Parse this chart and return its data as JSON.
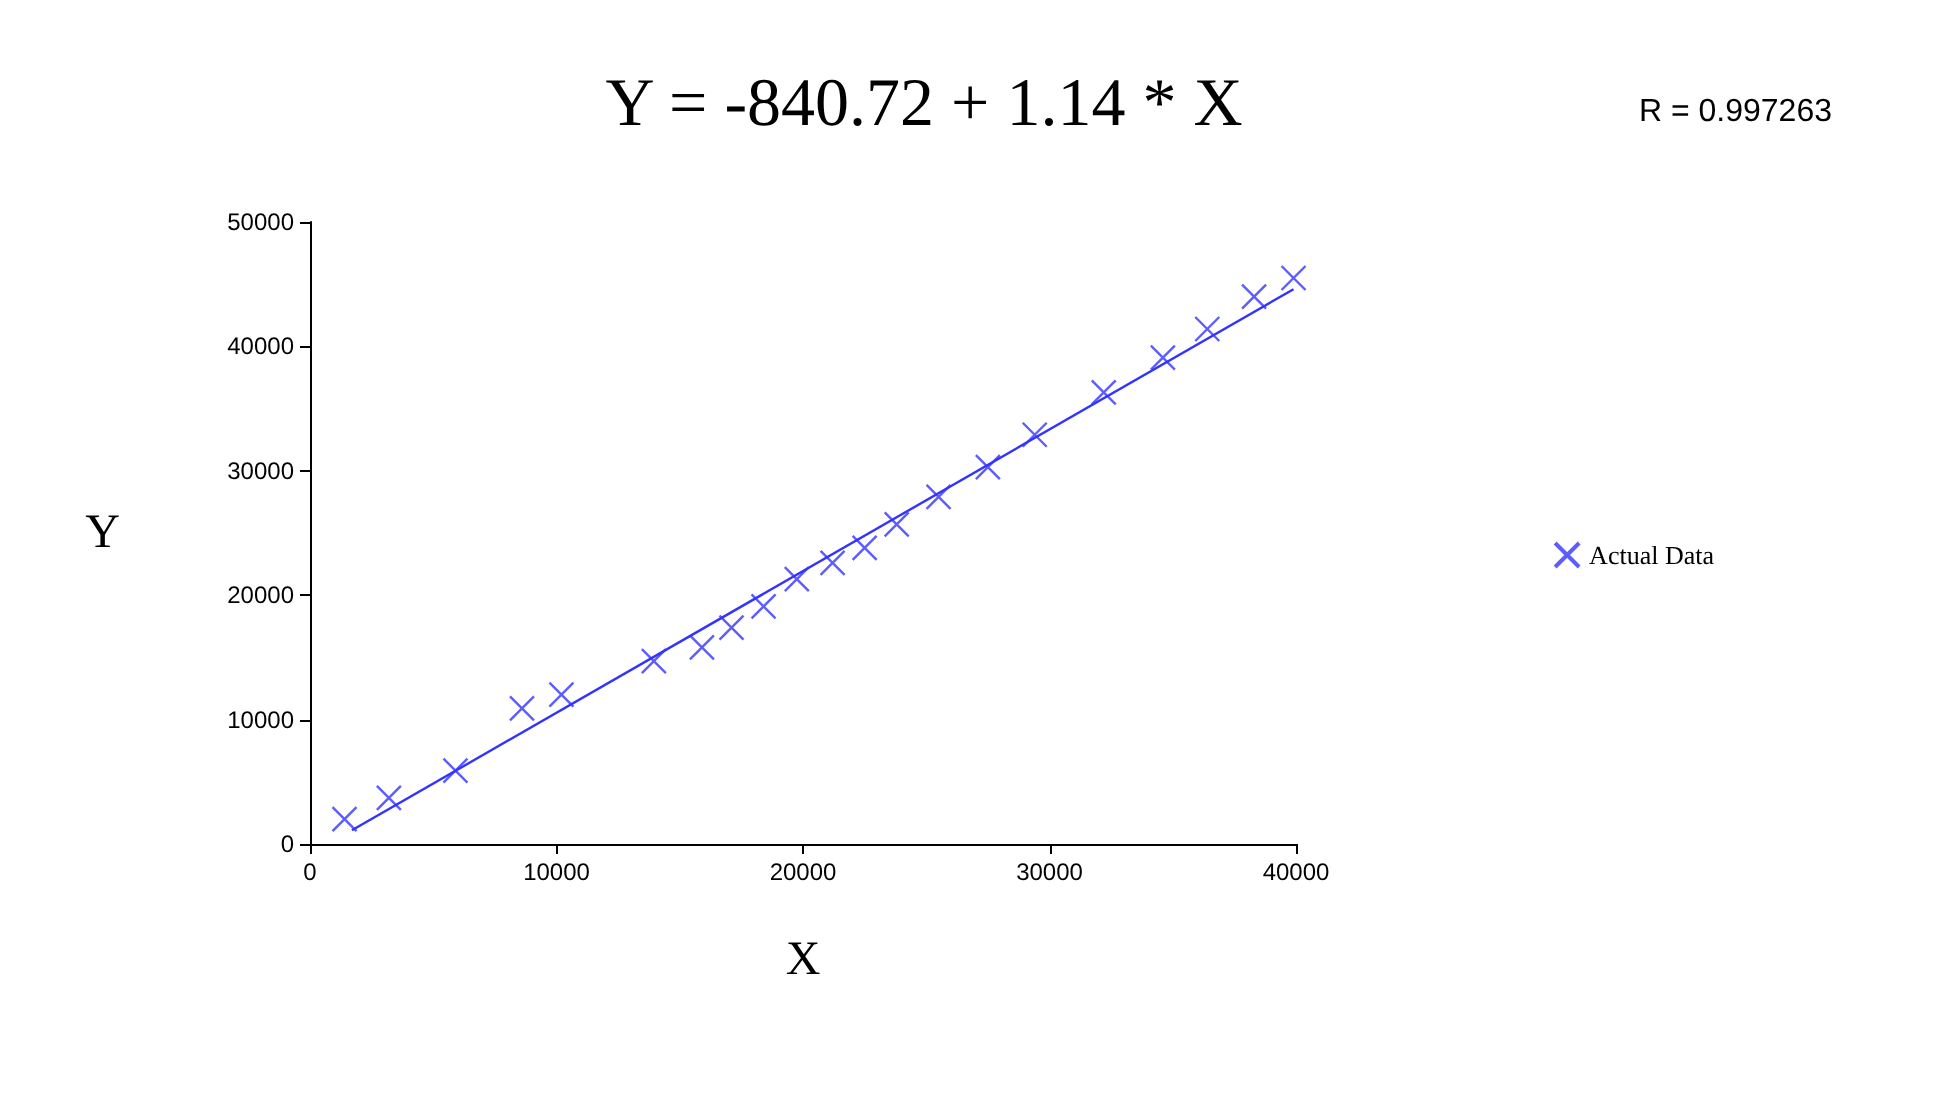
{
  "chart_data": {
    "type": "scatter",
    "title": "Y = -840.72 + 1.14 * X",
    "xlabel": "X",
    "ylabel": "Y",
    "annotations": [
      "R = 0.997263"
    ],
    "xlim": [
      0,
      40000
    ],
    "xticks": [
      0,
      10000,
      20000,
      30000,
      40000
    ],
    "ylim": [
      0,
      50000
    ],
    "yticks": [
      0,
      10000,
      20000,
      30000,
      40000,
      50000
    ],
    "grid": false,
    "legend": "right",
    "marker": "cross",
    "series": [
      {
        "name": "Actual Data",
        "color": "#3333ff",
        "x": [
          1400,
          3200,
          5900,
          8600,
          10200,
          13950,
          15900,
          17100,
          18400,
          19750,
          21200,
          22500,
          23800,
          25500,
          27500,
          29400,
          32200,
          34600,
          36400,
          38300,
          39900
        ],
        "values": [
          2000,
          3700,
          5900,
          10900,
          12000,
          14700,
          15800,
          17400,
          19100,
          21300,
          22600,
          23800,
          25700,
          27900,
          30300,
          32900,
          36300,
          39100,
          41400,
          44000,
          45500
        ]
      },
      {
        "type": "line",
        "color": "#3333ff",
        "marker": "none",
        "line_style": "solid",
        "x": [
          1700,
          39900
        ],
        "values": [
          1100,
          44600
        ]
      }
    ]
  }
}
